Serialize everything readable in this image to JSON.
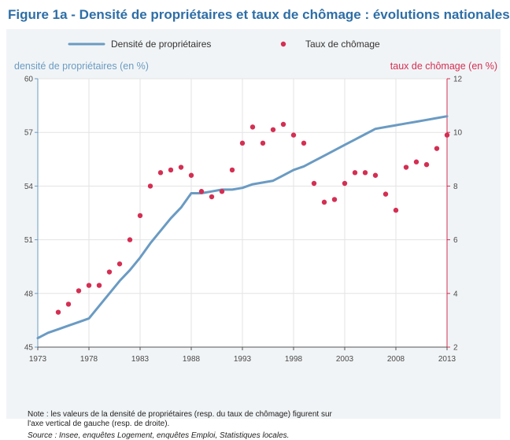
{
  "title": "Figure 1a - Densité de propriétaires et taux de chômage : évolutions nationales",
  "note": "Note : les valeurs de la densité de propriétaires (resp. du taux de chômage) figurent sur l'axe vertical de gauche (resp. de droite).",
  "source": "Source : Insee, enquêtes Logement, enquêtes Emploi, Statistiques locales.",
  "colors": {
    "line": "#6a9bc3",
    "dots": "#d42f53",
    "left_axis": "#6a9bc3",
    "right_axis": "#d42f53",
    "title": "#2e6ea6"
  },
  "chart_data": {
    "type": "line",
    "title": "Figure 1a - Densité de propriétaires et taux de chômage : évolutions nationales",
    "xlabel": "",
    "ylabel": "densité de propriétaires (en %)",
    "y2label": "taux de chômage (en %)",
    "xlim": [
      1973,
      2013
    ],
    "ylim": [
      45,
      60
    ],
    "y2lim": [
      2,
      12
    ],
    "xticks": [
      1973,
      1978,
      1983,
      1988,
      1993,
      1998,
      2003,
      2008,
      2013
    ],
    "yticks": [
      45,
      48,
      51,
      54,
      57,
      60
    ],
    "y2ticks": [
      2,
      4,
      6,
      8,
      10,
      12
    ],
    "legend_position": "top",
    "series": [
      {
        "name": "Densité de propriétaires",
        "type": "line",
        "axis": "left",
        "x": [
          1973,
          1974,
          1975,
          1976,
          1977,
          1978,
          1979,
          1980,
          1981,
          1982,
          1983,
          1984,
          1985,
          1986,
          1987,
          1988,
          1989,
          1990,
          1991,
          1992,
          1993,
          1994,
          1995,
          1996,
          1997,
          1998,
          1999,
          2000,
          2001,
          2002,
          2003,
          2004,
          2005,
          2006,
          2007,
          2008,
          2009,
          2010,
          2011,
          2012,
          2013
        ],
        "values": [
          45.5,
          45.8,
          46.0,
          46.2,
          46.4,
          46.6,
          47.3,
          48.0,
          48.7,
          49.3,
          50.0,
          50.8,
          51.5,
          52.2,
          52.8,
          53.6,
          53.6,
          53.7,
          53.8,
          53.8,
          53.9,
          54.1,
          54.2,
          54.3,
          54.6,
          54.9,
          55.1,
          55.4,
          55.7,
          56.0,
          56.3,
          56.6,
          56.9,
          57.2,
          57.3,
          57.4,
          57.5,
          57.6,
          57.7,
          57.8,
          57.9
        ]
      },
      {
        "name": "Taux de chômage",
        "type": "scatter",
        "axis": "right",
        "x": [
          1975,
          1976,
          1977,
          1978,
          1979,
          1980,
          1981,
          1982,
          1983,
          1984,
          1985,
          1986,
          1987,
          1988,
          1989,
          1990,
          1991,
          1992,
          1993,
          1994,
          1995,
          1996,
          1997,
          1998,
          1999,
          2000,
          2001,
          2002,
          2003,
          2004,
          2005,
          2006,
          2007,
          2008,
          2009,
          2010,
          2011,
          2012,
          2013
        ],
        "values": [
          3.3,
          3.6,
          4.1,
          4.3,
          4.3,
          4.8,
          5.1,
          6.0,
          6.9,
          8.0,
          8.5,
          8.6,
          8.7,
          8.4,
          7.8,
          7.6,
          7.8,
          8.6,
          9.6,
          10.2,
          9.6,
          10.1,
          10.3,
          9.9,
          9.6,
          8.1,
          7.4,
          7.5,
          8.1,
          8.5,
          8.5,
          8.4,
          7.7,
          7.1,
          8.7,
          8.9,
          8.8,
          9.4,
          9.9
        ]
      }
    ]
  }
}
